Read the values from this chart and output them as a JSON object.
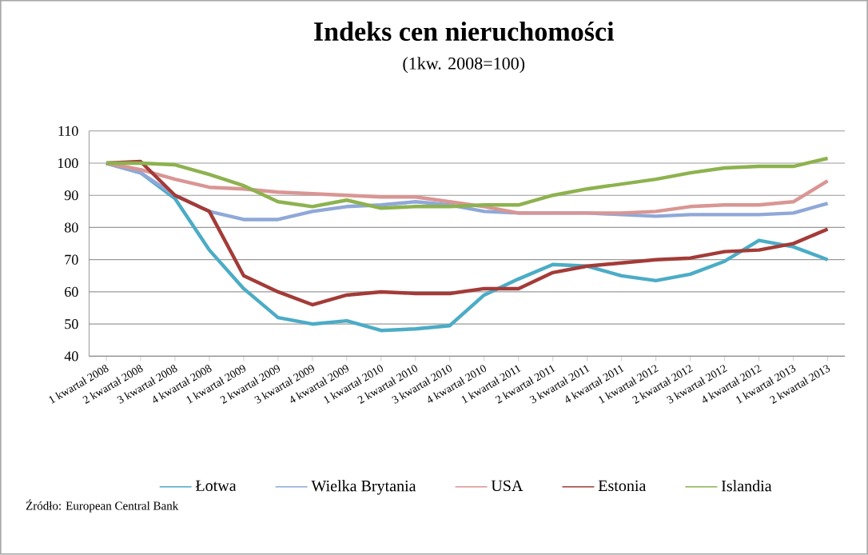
{
  "chart_data": {
    "type": "line",
    "title": "Indeks cen nieruchomości",
    "subtitle": "(1kw. 2008=100)",
    "categories": [
      "1 kwartał 2008",
      "2 kwartał 2008",
      "3 kwartał 2008",
      "4 kwartał 2008",
      "1 kwartał 2009",
      "2 kwartał 2009",
      "3 kwartał 2009",
      "4 kwartał 2009",
      "1 kwartał 2010",
      "2 kwartał 2010",
      "3 kwartał 2010",
      "4 kwartał 2010",
      "1 kwartał 2011",
      "2 kwartał 2011",
      "3 kwartał 2011",
      "4 kwartał 2011",
      "1 kwartał 2012",
      "2 kwartał 2012",
      "3 kwartał 2012",
      "4 kwartał 2012",
      "1 kwartał 2013",
      "2 kwartał 2013"
    ],
    "series": [
      {
        "name": "Łotwa",
        "color": "#4bacc6",
        "values": [
          100,
          97,
          89,
          73,
          61,
          52,
          50,
          51,
          48,
          48.5,
          49.5,
          59,
          64,
          68.5,
          68,
          65,
          63.5,
          65.5,
          69.5,
          76,
          74,
          70
        ]
      },
      {
        "name": "Wielka Brytania",
        "color": "#8fa8d8",
        "values": [
          100,
          97,
          90,
          85,
          82.5,
          82.5,
          85,
          86.5,
          87,
          88,
          87,
          85,
          84.5,
          null,
          84.5,
          84,
          83.5,
          84,
          84,
          84,
          84.5,
          87.5
        ]
      },
      {
        "name": "USA",
        "color": "#d99694",
        "values": [
          100,
          98,
          95,
          92.5,
          92,
          91,
          90.5,
          90,
          89.5,
          89.5,
          88,
          86.5,
          84.5,
          84.5,
          84.5,
          84.5,
          85,
          86.5,
          87,
          87,
          88,
          94.5
        ]
      },
      {
        "name": "Estonia",
        "color": "#a33b38",
        "values": [
          100,
          100.5,
          90,
          85,
          65,
          60,
          56,
          59,
          60,
          59.5,
          59.5,
          61,
          61,
          66,
          68,
          69,
          70,
          70.5,
          72.5,
          73,
          75,
          79.5
        ]
      },
      {
        "name": "Islandia",
        "color": "#8db24f",
        "values": [
          100,
          100,
          99.5,
          96.5,
          93,
          88,
          86.5,
          88.5,
          86,
          86.5,
          86.5,
          87,
          87,
          90,
          92,
          93.5,
          95,
          97,
          98.5,
          99,
          99,
          101.5
        ]
      }
    ],
    "ylim": [
      40,
      110
    ],
    "yticks": [
      40,
      50,
      60,
      70,
      80,
      90,
      100,
      110
    ],
    "grid": "y",
    "legend": "bottom",
    "marker": "none",
    "line_style": "solid",
    "annotations": [
      "Źródło: European Central Bank"
    ]
  }
}
